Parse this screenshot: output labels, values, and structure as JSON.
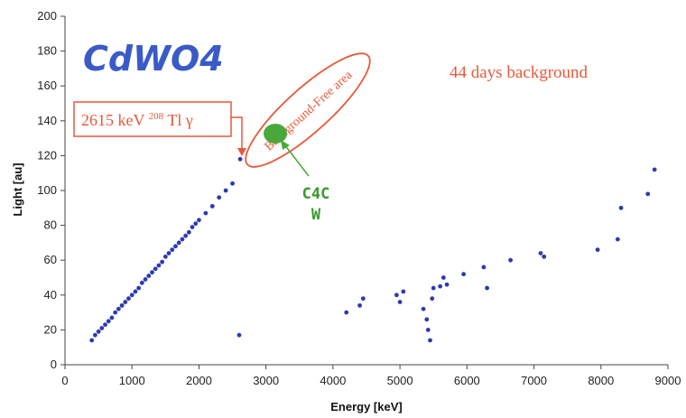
{
  "chart_data": {
    "type": "scatter",
    "title": "CdWO4",
    "xlabel": "Energy   [keV]",
    "ylabel": "Light  [au]",
    "xlim": [
      0,
      9000
    ],
    "ylim": [
      0,
      200
    ],
    "x_ticks": [
      0,
      1000,
      2000,
      3000,
      4000,
      5000,
      6000,
      7000,
      8000,
      9000
    ],
    "y_ticks": [
      0,
      20,
      40,
      60,
      80,
      100,
      120,
      140,
      160,
      180,
      200
    ],
    "grid": false,
    "series": [
      {
        "role": "gamma-beta band",
        "points": [
          [
            400,
            14
          ],
          [
            450,
            17
          ],
          [
            500,
            19
          ],
          [
            550,
            21
          ],
          [
            600,
            23
          ],
          [
            650,
            25
          ],
          [
            700,
            27
          ],
          [
            750,
            30
          ],
          [
            800,
            32
          ],
          [
            850,
            34
          ],
          [
            900,
            36
          ],
          [
            950,
            38
          ],
          [
            1000,
            40
          ],
          [
            1050,
            42
          ],
          [
            1100,
            44
          ],
          [
            1150,
            47
          ],
          [
            1200,
            49
          ],
          [
            1250,
            51
          ],
          [
            1300,
            53
          ],
          [
            1350,
            55
          ],
          [
            1400,
            57
          ],
          [
            1450,
            59
          ],
          [
            1500,
            62
          ],
          [
            1550,
            64
          ],
          [
            1600,
            66
          ],
          [
            1650,
            68
          ],
          [
            1700,
            70
          ],
          [
            1750,
            72
          ],
          [
            1800,
            74
          ],
          [
            1850,
            76
          ],
          [
            1900,
            79
          ],
          [
            1950,
            81
          ],
          [
            2000,
            83
          ],
          [
            2100,
            87
          ],
          [
            2200,
            91
          ],
          [
            2300,
            96
          ],
          [
            2400,
            100
          ],
          [
            2500,
            104
          ],
          [
            2615,
            118
          ]
        ]
      },
      {
        "role": "alpha clusters",
        "points": [
          [
            2600,
            17
          ],
          [
            4200,
            30
          ],
          [
            4400,
            34
          ],
          [
            4450,
            38
          ],
          [
            4950,
            40
          ],
          [
            5000,
            36
          ],
          [
            5050,
            42
          ],
          [
            5350,
            32
          ],
          [
            5400,
            26
          ],
          [
            5420,
            20
          ],
          [
            5450,
            14
          ],
          [
            5480,
            38
          ],
          [
            5500,
            44
          ],
          [
            5600,
            45
          ],
          [
            5650,
            50
          ],
          [
            5700,
            46
          ],
          [
            5950,
            52
          ],
          [
            6250,
            56
          ],
          [
            6300,
            44
          ],
          [
            6650,
            60
          ],
          [
            7100,
            64
          ],
          [
            7150,
            62
          ],
          [
            7950,
            66
          ],
          [
            8250,
            72
          ],
          [
            8300,
            90
          ],
          [
            8700,
            98
          ],
          [
            8800,
            112
          ]
        ]
      }
    ],
    "annotations": {
      "gamma_line_label": "2615 keV",
      "gamma_line_sup": "208",
      "gamma_line_nuclide": "Tl γ",
      "region_label": "Background-Free area",
      "period_label": "44 days background",
      "target_label_line1": "C4C",
      "target_label_line2": "W"
    }
  },
  "colors": {
    "points": "#2b3bb0",
    "annotation": "#e8593a",
    "target": "#4aa83a",
    "title": "#3a5bc7"
  }
}
